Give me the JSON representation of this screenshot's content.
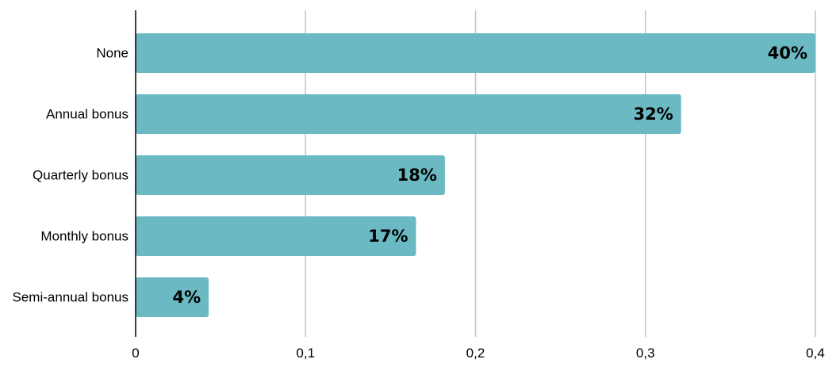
{
  "chart_data": {
    "type": "bar",
    "orientation": "horizontal",
    "categories": [
      "None",
      "Annual bonus",
      "Quarterly bonus",
      "Monthly bonus",
      "Semi-annual bonus"
    ],
    "values": [
      0.4,
      0.321,
      0.182,
      0.165,
      0.043
    ],
    "data_labels": [
      "40%",
      "32%",
      "18%",
      "17%",
      "4%"
    ],
    "xlim": [
      0,
      0.4
    ],
    "x_ticks": [
      0,
      0.1,
      0.2,
      0.3,
      0.4
    ],
    "x_tick_labels": [
      "0",
      "0,1",
      "0,2",
      "0,3",
      "0,4"
    ],
    "grid": "vertical",
    "legend": "none",
    "bar_color": "#6ab9c3",
    "grid_color": "#c4c4c4",
    "axis_color": "#000000"
  }
}
